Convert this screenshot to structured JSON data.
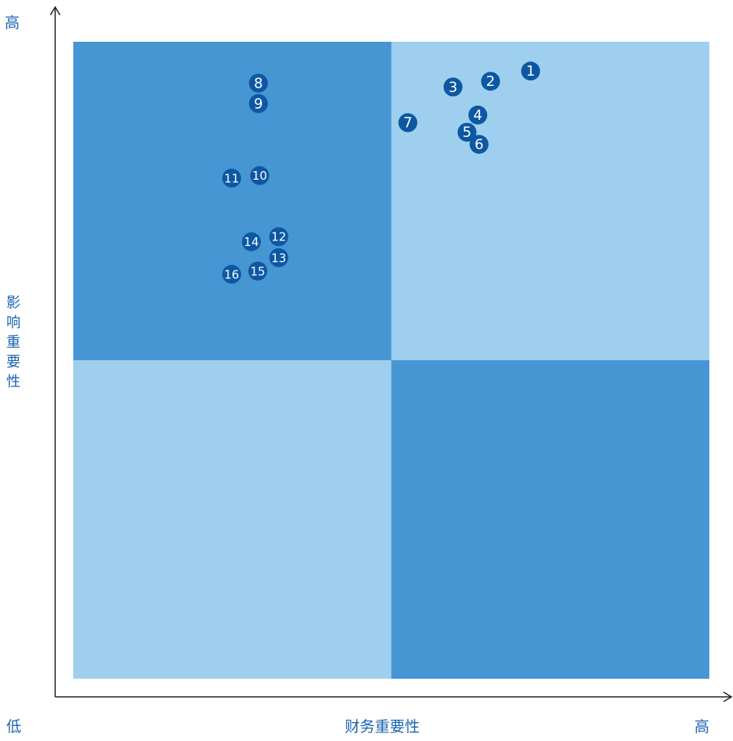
{
  "colors": {
    "quadrant_dark": "#4596d3",
    "quadrant_light": "#9fcfef",
    "marker": "#0d57a3",
    "marker_text": "#ffffff",
    "axis": "#222222",
    "label": "#1a64b0"
  },
  "axes": {
    "y_high": "高",
    "y_title": "影响重要性",
    "x_low": "低",
    "x_title": "财务重要性",
    "x_high": "高"
  },
  "chart_data": {
    "type": "scatter",
    "title": "",
    "xlabel": "财务重要性",
    "ylabel": "影响重要性",
    "xlim": [
      0,
      100
    ],
    "ylim": [
      0,
      100
    ],
    "grid": false,
    "quadrant_split": {
      "x": 50,
      "y": 50
    },
    "quadrants": [
      {
        "position": "top-left",
        "shade": "dark"
      },
      {
        "position": "top-right",
        "shade": "light"
      },
      {
        "position": "bottom-left",
        "shade": "light"
      },
      {
        "position": "bottom-right",
        "shade": "dark"
      }
    ],
    "points": [
      {
        "label": "1",
        "x": 71.9,
        "y": 95.4
      },
      {
        "label": "2",
        "x": 65.6,
        "y": 93.8
      },
      {
        "label": "3",
        "x": 59.7,
        "y": 92.9
      },
      {
        "label": "4",
        "x": 63.6,
        "y": 88.5
      },
      {
        "label": "5",
        "x": 61.9,
        "y": 85.8
      },
      {
        "label": "6",
        "x": 63.8,
        "y": 83.9
      },
      {
        "label": "7",
        "x": 52.6,
        "y": 87.3
      },
      {
        "label": "8",
        "x": 29.1,
        "y": 93.5
      },
      {
        "label": "9",
        "x": 29.1,
        "y": 90.3
      },
      {
        "label": "10",
        "x": 29.3,
        "y": 79.0
      },
      {
        "label": "11",
        "x": 24.9,
        "y": 78.6
      },
      {
        "label": "12",
        "x": 32.3,
        "y": 69.4
      },
      {
        "label": "13",
        "x": 32.3,
        "y": 66.1
      },
      {
        "label": "14",
        "x": 28.0,
        "y": 68.6
      },
      {
        "label": "15",
        "x": 29.0,
        "y": 64.0
      },
      {
        "label": "16",
        "x": 24.9,
        "y": 63.5
      }
    ]
  }
}
